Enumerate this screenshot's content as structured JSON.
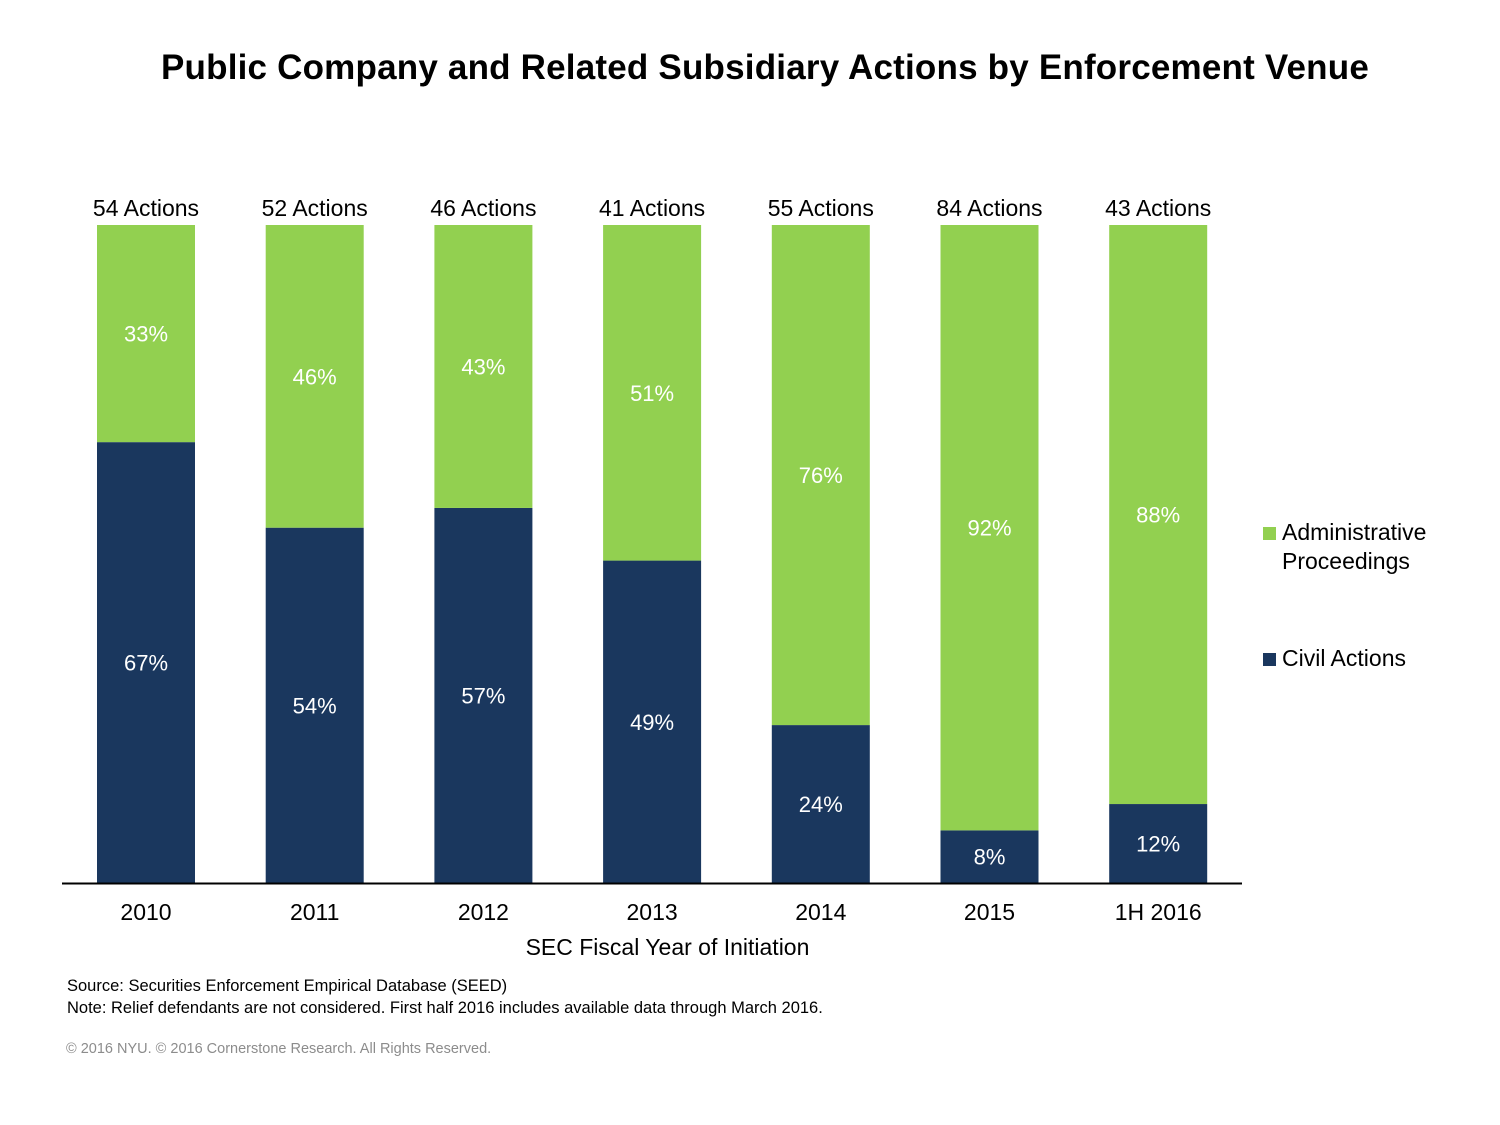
{
  "chart_data": {
    "type": "bar",
    "stacked": true,
    "percent_stacked": true,
    "title": "Public Company and Related Subsidiary Actions by Enforcement Venue",
    "xlabel": "SEC Fiscal Year of Initiation",
    "ylabel": "",
    "ylim": [
      0,
      100
    ],
    "grid": false,
    "legend_position": "right",
    "categories": [
      "2010",
      "2011",
      "2012",
      "2013",
      "2014",
      "2015",
      "1H 2016"
    ],
    "totals": [
      54,
      52,
      46,
      41,
      55,
      84,
      43
    ],
    "total_labels": [
      "54 Actions",
      "52 Actions",
      "46 Actions",
      "41 Actions",
      "55 Actions",
      "84 Actions",
      "43 Actions"
    ],
    "series": [
      {
        "name": "Civil Actions",
        "color": "#1a375e",
        "values": [
          67,
          54,
          57,
          49,
          24,
          8,
          12
        ],
        "labels": [
          "67%",
          "54%",
          "57%",
          "49%",
          "24%",
          "8%",
          "12%"
        ]
      },
      {
        "name": "Administrative Proceedings",
        "color": "#92d050",
        "values": [
          33,
          46,
          43,
          51,
          76,
          92,
          88
        ],
        "labels": [
          "33%",
          "46%",
          "43%",
          "51%",
          "76%",
          "92%",
          "88%"
        ]
      }
    ],
    "legend": [
      {
        "label_line1": "Administrative",
        "label_line2": "Proceedings",
        "color": "#92d050"
      },
      {
        "label_line1": "Civil Actions",
        "label_line2": "",
        "color": "#1a375e"
      }
    ]
  },
  "notes": {
    "source": "Source: Securities Enforcement Empirical Database (SEED)",
    "note": "Note: Relief defendants are not considered. First half 2016 includes available data through March 2016.",
    "copyright": "© 2016 NYU. © 2016 Cornerstone Research. All Rights Reserved."
  }
}
